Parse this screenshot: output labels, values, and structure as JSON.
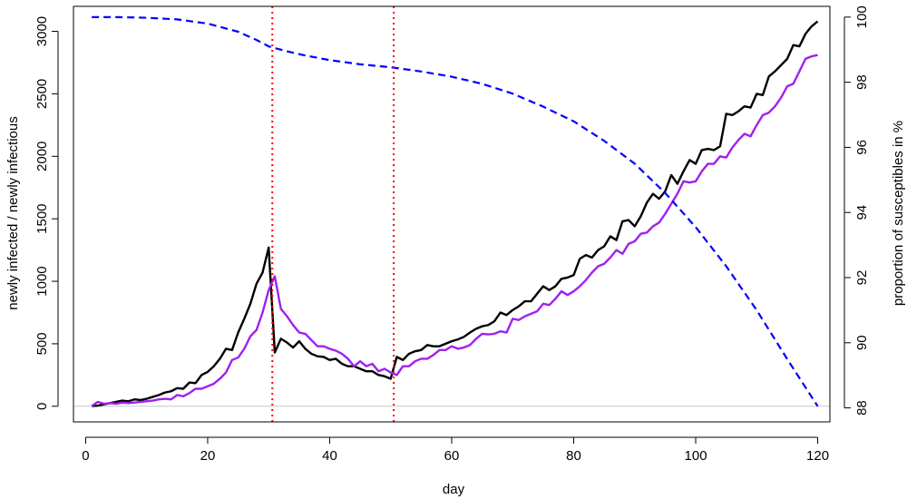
{
  "chart_data": {
    "type": "line",
    "xlabel": "day",
    "ylabel": "newly infected / newly infectious",
    "y2label": "proportion of susceptibles in %",
    "xlim": [
      -2,
      122
    ],
    "ylim": [
      -125,
      3200
    ],
    "y2lim": [
      87.57,
      100.33
    ],
    "x_ticks": [
      0,
      20,
      40,
      60,
      80,
      100,
      120
    ],
    "y_ticks": [
      0,
      500,
      1000,
      1500,
      2000,
      2500,
      3000
    ],
    "y2_ticks": [
      88,
      90,
      92,
      94,
      96,
      98,
      100
    ],
    "reference_hline": {
      "y": 0,
      "color": "#c8c8c8"
    },
    "vlines": [
      {
        "x": 30.6,
        "color": "#ff0000",
        "style": "dotted"
      },
      {
        "x": 50.5,
        "color": "#ff0000",
        "style": "dotted"
      }
    ],
    "series": [
      {
        "axis": "left",
        "color": "#000000",
        "style": "solid",
        "points": [
          [
            1,
            2
          ],
          [
            2,
            5
          ],
          [
            3,
            15
          ],
          [
            4,
            25
          ],
          [
            5,
            35
          ],
          [
            6,
            45
          ],
          [
            7,
            40
          ],
          [
            8,
            55
          ],
          [
            9,
            50
          ],
          [
            10,
            60
          ],
          [
            11,
            75
          ],
          [
            12,
            90
          ],
          [
            13,
            110
          ],
          [
            14,
            120
          ],
          [
            15,
            145
          ],
          [
            16,
            140
          ],
          [
            17,
            190
          ],
          [
            18,
            185
          ],
          [
            19,
            250
          ],
          [
            20,
            275
          ],
          [
            21,
            320
          ],
          [
            22,
            380
          ],
          [
            23,
            460
          ],
          [
            24,
            450
          ],
          [
            25,
            590
          ],
          [
            26,
            700
          ],
          [
            27,
            820
          ],
          [
            28,
            980
          ],
          [
            29,
            1070
          ],
          [
            30,
            1270
          ],
          [
            31,
            430
          ],
          [
            32,
            540
          ],
          [
            33,
            510
          ],
          [
            34,
            470
          ],
          [
            35,
            520
          ],
          [
            36,
            460
          ],
          [
            37,
            420
          ],
          [
            38,
            400
          ],
          [
            39,
            395
          ],
          [
            40,
            370
          ],
          [
            41,
            380
          ],
          [
            42,
            340
          ],
          [
            43,
            320
          ],
          [
            44,
            320
          ],
          [
            45,
            300
          ],
          [
            46,
            280
          ],
          [
            47,
            280
          ],
          [
            48,
            250
          ],
          [
            49,
            240
          ],
          [
            50,
            220
          ],
          [
            51,
            395
          ],
          [
            52,
            370
          ],
          [
            53,
            420
          ],
          [
            54,
            440
          ],
          [
            55,
            450
          ],
          [
            56,
            490
          ],
          [
            57,
            480
          ],
          [
            58,
            480
          ],
          [
            59,
            500
          ],
          [
            60,
            520
          ],
          [
            61,
            535
          ],
          [
            62,
            555
          ],
          [
            63,
            590
          ],
          [
            64,
            620
          ],
          [
            65,
            640
          ],
          [
            66,
            650
          ],
          [
            67,
            680
          ],
          [
            68,
            750
          ],
          [
            69,
            730
          ],
          [
            70,
            770
          ],
          [
            71,
            800
          ],
          [
            72,
            840
          ],
          [
            73,
            840
          ],
          [
            74,
            900
          ],
          [
            75,
            960
          ],
          [
            76,
            930
          ],
          [
            77,
            960
          ],
          [
            78,
            1020
          ],
          [
            79,
            1030
          ],
          [
            80,
            1050
          ],
          [
            81,
            1180
          ],
          [
            82,
            1210
          ],
          [
            83,
            1190
          ],
          [
            84,
            1250
          ],
          [
            85,
            1280
          ],
          [
            86,
            1360
          ],
          [
            87,
            1330
          ],
          [
            88,
            1480
          ],
          [
            89,
            1490
          ],
          [
            90,
            1440
          ],
          [
            91,
            1520
          ],
          [
            92,
            1630
          ],
          [
            93,
            1700
          ],
          [
            94,
            1660
          ],
          [
            95,
            1720
          ],
          [
            96,
            1850
          ],
          [
            97,
            1780
          ],
          [
            98,
            1880
          ],
          [
            99,
            1970
          ],
          [
            100,
            1940
          ],
          [
            101,
            2050
          ],
          [
            102,
            2060
          ],
          [
            103,
            2050
          ],
          [
            104,
            2080
          ],
          [
            105,
            2340
          ],
          [
            106,
            2330
          ],
          [
            107,
            2360
          ],
          [
            108,
            2400
          ],
          [
            109,
            2390
          ],
          [
            110,
            2500
          ],
          [
            111,
            2490
          ],
          [
            112,
            2640
          ],
          [
            113,
            2680
          ],
          [
            114,
            2730
          ],
          [
            115,
            2780
          ],
          [
            116,
            2890
          ],
          [
            117,
            2880
          ],
          [
            118,
            2980
          ],
          [
            119,
            3040
          ],
          [
            120,
            3080
          ]
        ]
      },
      {
        "axis": "left",
        "color": "#a020f0",
        "style": "solid",
        "points": [
          [
            1,
            2
          ],
          [
            2,
            35
          ],
          [
            3,
            20
          ],
          [
            4,
            25
          ],
          [
            5,
            20
          ],
          [
            6,
            30
          ],
          [
            7,
            25
          ],
          [
            8,
            30
          ],
          [
            9,
            35
          ],
          [
            10,
            40
          ],
          [
            11,
            45
          ],
          [
            12,
            55
          ],
          [
            13,
            60
          ],
          [
            14,
            55
          ],
          [
            15,
            90
          ],
          [
            16,
            80
          ],
          [
            17,
            105
          ],
          [
            18,
            140
          ],
          [
            19,
            140
          ],
          [
            20,
            160
          ],
          [
            21,
            180
          ],
          [
            22,
            220
          ],
          [
            23,
            270
          ],
          [
            24,
            370
          ],
          [
            25,
            390
          ],
          [
            26,
            460
          ],
          [
            27,
            560
          ],
          [
            28,
            610
          ],
          [
            29,
            750
          ],
          [
            30,
            930
          ],
          [
            31,
            1040
          ],
          [
            32,
            780
          ],
          [
            33,
            720
          ],
          [
            34,
            650
          ],
          [
            35,
            590
          ],
          [
            36,
            580
          ],
          [
            37,
            530
          ],
          [
            38,
            480
          ],
          [
            39,
            480
          ],
          [
            40,
            460
          ],
          [
            41,
            445
          ],
          [
            42,
            420
          ],
          [
            43,
            380
          ],
          [
            44,
            320
          ],
          [
            45,
            360
          ],
          [
            46,
            320
          ],
          [
            47,
            340
          ],
          [
            48,
            280
          ],
          [
            49,
            300
          ],
          [
            50,
            270
          ],
          [
            51,
            250
          ],
          [
            52,
            320
          ],
          [
            53,
            320
          ],
          [
            54,
            360
          ],
          [
            55,
            380
          ],
          [
            56,
            380
          ],
          [
            57,
            410
          ],
          [
            58,
            450
          ],
          [
            59,
            450
          ],
          [
            60,
            480
          ],
          [
            61,
            460
          ],
          [
            62,
            470
          ],
          [
            63,
            490
          ],
          [
            64,
            540
          ],
          [
            65,
            580
          ],
          [
            66,
            575
          ],
          [
            67,
            580
          ],
          [
            68,
            600
          ],
          [
            69,
            590
          ],
          [
            70,
            700
          ],
          [
            71,
            690
          ],
          [
            72,
            720
          ],
          [
            73,
            740
          ],
          [
            74,
            760
          ],
          [
            75,
            820
          ],
          [
            76,
            810
          ],
          [
            77,
            860
          ],
          [
            78,
            920
          ],
          [
            79,
            890
          ],
          [
            80,
            920
          ],
          [
            81,
            960
          ],
          [
            82,
            1010
          ],
          [
            83,
            1070
          ],
          [
            84,
            1120
          ],
          [
            85,
            1140
          ],
          [
            86,
            1190
          ],
          [
            87,
            1250
          ],
          [
            88,
            1220
          ],
          [
            89,
            1300
          ],
          [
            90,
            1320
          ],
          [
            91,
            1380
          ],
          [
            92,
            1390
          ],
          [
            93,
            1440
          ],
          [
            94,
            1470
          ],
          [
            95,
            1540
          ],
          [
            96,
            1620
          ],
          [
            97,
            1700
          ],
          [
            98,
            1800
          ],
          [
            99,
            1790
          ],
          [
            100,
            1800
          ],
          [
            101,
            1880
          ],
          [
            102,
            1940
          ],
          [
            103,
            1940
          ],
          [
            104,
            2000
          ],
          [
            105,
            1990
          ],
          [
            106,
            2070
          ],
          [
            107,
            2130
          ],
          [
            108,
            2180
          ],
          [
            109,
            2160
          ],
          [
            110,
            2250
          ],
          [
            111,
            2330
          ],
          [
            112,
            2350
          ],
          [
            113,
            2400
          ],
          [
            114,
            2470
          ],
          [
            115,
            2560
          ],
          [
            116,
            2580
          ],
          [
            117,
            2680
          ],
          [
            118,
            2780
          ],
          [
            119,
            2800
          ],
          [
            120,
            2810
          ]
        ]
      },
      {
        "axis": "right",
        "color": "#0000ff",
        "style": "dashed",
        "points": [
          [
            1,
            100
          ],
          [
            5,
            100
          ],
          [
            10,
            99.98
          ],
          [
            15,
            99.93
          ],
          [
            20,
            99.8
          ],
          [
            25,
            99.55
          ],
          [
            28,
            99.3
          ],
          [
            30,
            99.1
          ],
          [
            31,
            99.05
          ],
          [
            33,
            98.95
          ],
          [
            36,
            98.82
          ],
          [
            40,
            98.68
          ],
          [
            45,
            98.55
          ],
          [
            50,
            98.46
          ],
          [
            55,
            98.33
          ],
          [
            60,
            98.17
          ],
          [
            65,
            97.95
          ],
          [
            70,
            97.65
          ],
          [
            75,
            97.25
          ],
          [
            80,
            96.8
          ],
          [
            85,
            96.2
          ],
          [
            90,
            95.5
          ],
          [
            95,
            94.6
          ],
          [
            100,
            93.55
          ],
          [
            105,
            92.35
          ],
          [
            110,
            91.0
          ],
          [
            115,
            89.5
          ],
          [
            120,
            88.05
          ]
        ]
      }
    ]
  }
}
